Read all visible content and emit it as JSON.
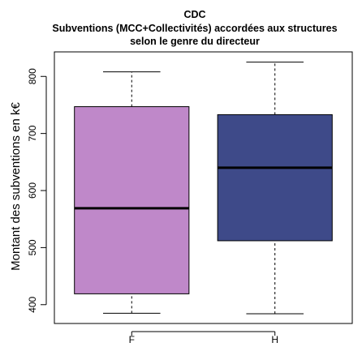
{
  "chart_data": {
    "type": "boxplot",
    "title": "CDC",
    "subtitle_lines": [
      "Subventions (MCC+Collectivités) accordées aux structures",
      "selon le genre du directeur"
    ],
    "xlabel": "",
    "ylabel": "Montant des subventions en k€",
    "ylim": [
      367,
      843
    ],
    "yticks": [
      400,
      500,
      600,
      700,
      800
    ],
    "grid": false,
    "legend": "none",
    "categories": [
      "F",
      "H"
    ],
    "series": [
      {
        "category": "F",
        "min": 385,
        "q1": 419,
        "median": 569,
        "q3": 747,
        "max": 808,
        "color": "#bf88c9"
      },
      {
        "category": "H",
        "min": 384,
        "q1": 512,
        "median": 640,
        "q3": 733,
        "max": 825,
        "color": "#3e4a89"
      }
    ]
  }
}
